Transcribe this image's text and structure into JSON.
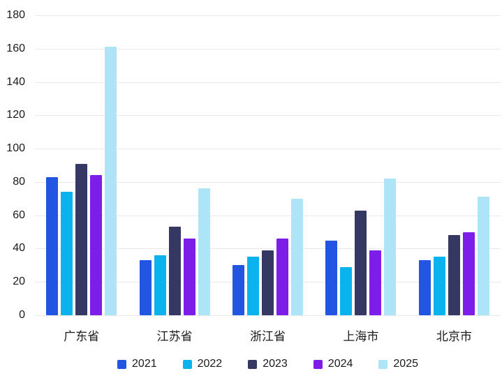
{
  "chart_data": {
    "type": "bar",
    "title": "",
    "xlabel": "",
    "ylabel": "",
    "categories": [
      "广东省",
      "江苏省",
      "浙江省",
      "上海市",
      "北京市"
    ],
    "series": [
      {
        "name": "2021",
        "color": "#2255e1",
        "values": [
          83,
          33,
          30,
          45,
          33
        ]
      },
      {
        "name": "2022",
        "color": "#0ab3ee",
        "values": [
          74,
          36,
          35,
          29,
          35
        ]
      },
      {
        "name": "2023",
        "color": "#343863",
        "values": [
          91,
          53,
          39,
          63,
          48
        ]
      },
      {
        "name": "2024",
        "color": "#7d1ee8",
        "values": [
          84,
          46,
          46,
          39,
          50
        ]
      },
      {
        "name": "2025",
        "color": "#aee4f8",
        "values": [
          161,
          76,
          70,
          82,
          71
        ]
      }
    ],
    "ylim": [
      0,
      180
    ],
    "yticks": [
      180,
      160,
      140,
      120,
      100,
      80,
      60,
      40,
      20,
      0
    ],
    "grid": true,
    "legend_position": "bottom"
  },
  "theme": {
    "background": "#ffffff",
    "text_color": "#1a1a1a",
    "grid_color": "#e9e9e9"
  }
}
